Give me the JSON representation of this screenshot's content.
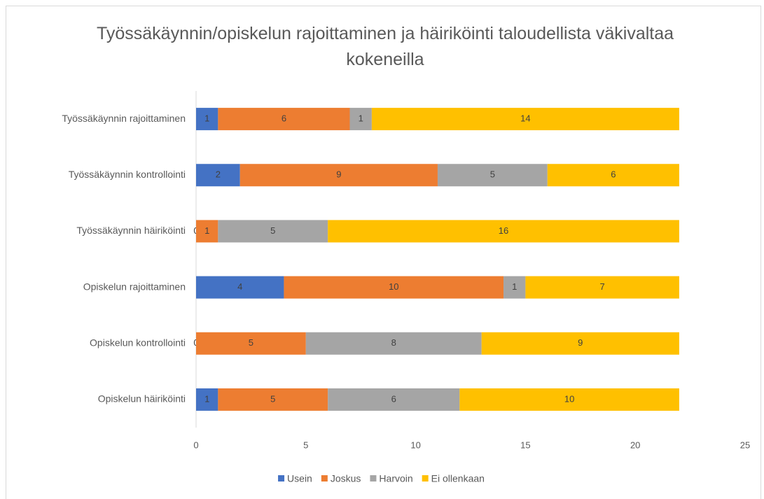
{
  "chart_data": {
    "type": "stacked_bar_horizontal",
    "title": "Työssäkäynnin/opiskelun rajoittaminen ja häiriköinti taloudellista väkivaltaa kokeneilla",
    "categories": [
      "Työssäkäynnin rajoittaminen",
      "Työssäkäynnin kontrollointi",
      "Työssäkäynnin häiriköinti",
      "Opiskelun rajoittaminen",
      "Opiskelun kontrollointi",
      "Opiskelun häiriköinti"
    ],
    "series": [
      {
        "name": "Usein",
        "color": "#4472c4",
        "values": [
          1,
          2,
          0,
          4,
          0,
          1
        ]
      },
      {
        "name": "Joskus",
        "color": "#ed7d31",
        "values": [
          6,
          9,
          1,
          10,
          5,
          5
        ]
      },
      {
        "name": "Harvoin",
        "color": "#a5a5a5",
        "values": [
          1,
          5,
          5,
          1,
          8,
          6
        ]
      },
      {
        "name": "Ei ollenkaan",
        "color": "#ffc000",
        "values": [
          14,
          6,
          16,
          7,
          9,
          10
        ]
      }
    ],
    "xlim": [
      0,
      25
    ],
    "xticks": [
      0,
      5,
      10,
      15,
      20,
      25
    ],
    "grid": false,
    "legend": "bottom"
  }
}
